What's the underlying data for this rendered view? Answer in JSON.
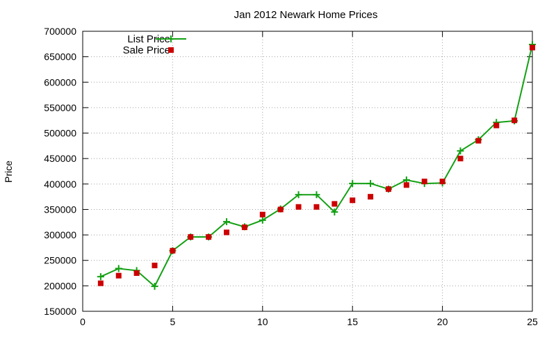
{
  "chart_data": {
    "type": "line",
    "title": "Jan 2012 Newark Home Prices",
    "xlabel": "",
    "ylabel": "Price",
    "xlim": [
      0,
      25
    ],
    "ylim": [
      150000,
      700000
    ],
    "x_ticks": [
      0,
      5,
      10,
      15,
      20,
      25
    ],
    "y_ticks": [
      150000,
      200000,
      250000,
      300000,
      350000,
      400000,
      450000,
      500000,
      550000,
      600000,
      650000,
      700000
    ],
    "grid": true,
    "legend_position": "top-left",
    "series": [
      {
        "name": "List Price",
        "style": "line+cross",
        "color": "#12a012",
        "x": [
          1,
          2,
          3,
          4,
          5,
          6,
          7,
          8,
          9,
          10,
          11,
          12,
          13,
          14,
          15,
          16,
          17,
          18,
          19,
          20,
          21,
          22,
          23,
          24,
          25
        ],
        "y": [
          218000,
          234000,
          230000,
          199000,
          269000,
          296000,
          296000,
          326000,
          316000,
          329000,
          351000,
          379000,
          379000,
          345000,
          401000,
          401000,
          390000,
          408000,
          401000,
          402000,
          465000,
          487000,
          521000,
          524000,
          674000
        ]
      },
      {
        "name": "Sale Price",
        "style": "square",
        "color": "#cc0000",
        "x": [
          1,
          2,
          3,
          4,
          5,
          6,
          7,
          8,
          9,
          10,
          11,
          12,
          13,
          14,
          15,
          16,
          17,
          18,
          19,
          20,
          21,
          22,
          23,
          24,
          25
        ],
        "y": [
          205000,
          220000,
          225000,
          240000,
          269000,
          296000,
          296000,
          305000,
          315000,
          340000,
          350000,
          355000,
          355000,
          361000,
          368000,
          375000,
          390000,
          398000,
          405000,
          405000,
          450000,
          485000,
          515000,
          525000,
          668000
        ]
      }
    ]
  }
}
